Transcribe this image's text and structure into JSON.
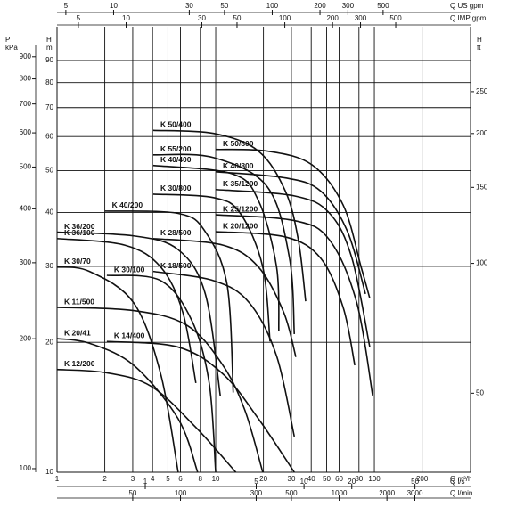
{
  "chart_data": {
    "type": "line",
    "xlog": true,
    "ylog": true,
    "grid": true,
    "color": "#111111",
    "xlim": [
      1,
      404
    ],
    "xticks": [
      1,
      2,
      3,
      4,
      5,
      6,
      8,
      10,
      20,
      30,
      40,
      50,
      60,
      80,
      100,
      200
    ],
    "xlabel": "Q m³/h",
    "ylim": [
      10,
      98
    ],
    "yticks": [
      10,
      20,
      30,
      40,
      50,
      60,
      70,
      80,
      90
    ],
    "ylabel": "H",
    "yunit": "m",
    "secondary_axes": [
      {
        "position": "top",
        "label": "Q US gpm",
        "lim": [
          4.4,
          1779
        ],
        "ticks": [
          5,
          10,
          30,
          50,
          100,
          200,
          300,
          500
        ]
      },
      {
        "position": "top",
        "label": "Q IMP gpm",
        "lim": [
          3.67,
          1481
        ],
        "ticks": [
          5,
          10,
          30,
          50,
          100,
          200,
          300,
          500
        ]
      },
      {
        "position": "bottom",
        "label": "Q l/s",
        "lim": [
          0.278,
          112
        ],
        "ticks": [
          1,
          5,
          10,
          20,
          50
        ]
      },
      {
        "position": "bottom",
        "label": "Q l/min",
        "lim": [
          16.67,
          6733
        ],
        "ticks": [
          50,
          100,
          300,
          500,
          1000,
          2000,
          3000
        ]
      },
      {
        "position": "left",
        "label": "P",
        "unit": "kPa",
        "lim": [
          98.1,
          961
        ],
        "ticks": [
          100,
          200,
          300,
          400,
          500,
          600,
          700,
          800,
          900
        ]
      },
      {
        "position": "right",
        "label": "H",
        "unit": "ft",
        "lim": [
          32.8,
          321.5
        ],
        "ticks": [
          50,
          100,
          150,
          200,
          250
        ]
      }
    ],
    "series": [
      {
        "name": "K 50/400",
        "x": [
          4.04,
          9.7,
          18.6,
          27.5,
          33.2,
          36.9
        ],
        "values": [
          62,
          61,
          55.5,
          44.8,
          34.5,
          24.9
        ]
      },
      {
        "name": "K 55/200",
        "x": [
          4.04,
          9.7,
          21.2,
          29.2,
          31.3
        ],
        "values": [
          54.4,
          53.6,
          45.8,
          31.3,
          20.9
        ]
      },
      {
        "name": "K 40/400",
        "x": [
          4.04,
          12.6,
          18.6,
          24.2,
          25
        ],
        "values": [
          51.4,
          49.2,
          42.6,
          29.9,
          21.2
        ]
      },
      {
        "name": "K 30/800",
        "x": [
          4.04,
          9.7,
          14.3,
          19.8,
          22
        ],
        "values": [
          44.1,
          43.3,
          39.8,
          29.9,
          20.1
        ]
      },
      {
        "name": "K 50/800",
        "x": [
          10,
          21.2,
          40.4,
          63.6,
          82.5,
          93.6
        ],
        "values": [
          56,
          55.5,
          51.6,
          41.6,
          29.9,
          25.3
        ]
      },
      {
        "name": "K 40/800",
        "x": [
          10,
          27.5,
          46,
          67.8,
          87.9
        ],
        "values": [
          49.7,
          48.1,
          44.8,
          36.1,
          25.9
        ]
      },
      {
        "name": "K 35/1200",
        "x": [
          10,
          31.3,
          52.3,
          72.3,
          93.6
        ],
        "values": [
          45.2,
          43.7,
          39.8,
          31.3,
          19.5
        ]
      },
      {
        "name": "K 25/1200",
        "x": [
          10,
          31.3,
          52.3,
          77.5,
          97.7
        ],
        "values": [
          39.5,
          38.3,
          34.5,
          24.7,
          15
        ]
      },
      {
        "name": "K 20/1200",
        "x": [
          10,
          27.5,
          46,
          63.6,
          75.3
        ],
        "values": [
          36.1,
          35.1,
          31.3,
          24.1,
          17.7
        ]
      },
      {
        "name": "K 40/200",
        "x": [
          2,
          5.8,
          8.6,
          11.8,
          12.9
        ],
        "values": [
          40.3,
          39.8,
          36.1,
          27.2,
          15.3
        ]
      },
      {
        "name": "K 36/200",
        "x": [
          1,
          3.04,
          5.8,
          8.6,
          10.7
        ],
        "values": [
          36,
          35.3,
          32.8,
          25.9,
          15
        ]
      },
      {
        "name": "K 28/500",
        "x": [
          4.04,
          11.1,
          18.6,
          26.8,
          32
        ],
        "values": [
          34.8,
          33.6,
          29.9,
          23.5,
          18.5
        ]
      },
      {
        "name": "K 36/100",
        "x": [
          1,
          2.67,
          4.5,
          6.2,
          7.5
        ],
        "values": [
          34.8,
          33.6,
          29.9,
          23.5,
          16.1
        ]
      },
      {
        "name": "K 30/70",
        "x": [
          1,
          1.6,
          3.04,
          4.5,
          5.8
        ],
        "values": [
          29.9,
          29.2,
          24.7,
          16.9,
          10
        ]
      },
      {
        "name": "K 30/100",
        "x": [
          2.06,
          4.5,
          7.1,
          9.1,
          10
        ],
        "values": [
          28.6,
          27.8,
          22.4,
          16.1,
          10
        ]
      },
      {
        "name": "K 18/500",
        "x": [
          4.04,
          9.7,
          16.3,
          24.2,
          31.3
        ],
        "values": [
          29.2,
          27.8,
          24.7,
          18.6,
          12.1
        ]
      },
      {
        "name": "K 11/500",
        "x": [
          1,
          3.04,
          6.6,
          11.1,
          15.3,
          19.8
        ],
        "values": [
          24.1,
          23.7,
          21.9,
          17.7,
          13.9,
          10
        ]
      },
      {
        "name": "K 20/41",
        "x": [
          1,
          1.6,
          3.04,
          5.8,
          7.7
        ],
        "values": [
          20.4,
          19.9,
          17.7,
          13.3,
          10
        ]
      },
      {
        "name": "K 14/400",
        "x": [
          2.06,
          5.8,
          11.1,
          18.6,
          31.3
        ],
        "values": [
          20.1,
          19.5,
          16.9,
          13.3,
          10
        ]
      },
      {
        "name": "K 12/200",
        "x": [
          1,
          2.06,
          3.94,
          7.5,
          13.4
        ],
        "values": [
          17.3,
          17,
          15.8,
          12.7,
          10
        ]
      }
    ]
  }
}
